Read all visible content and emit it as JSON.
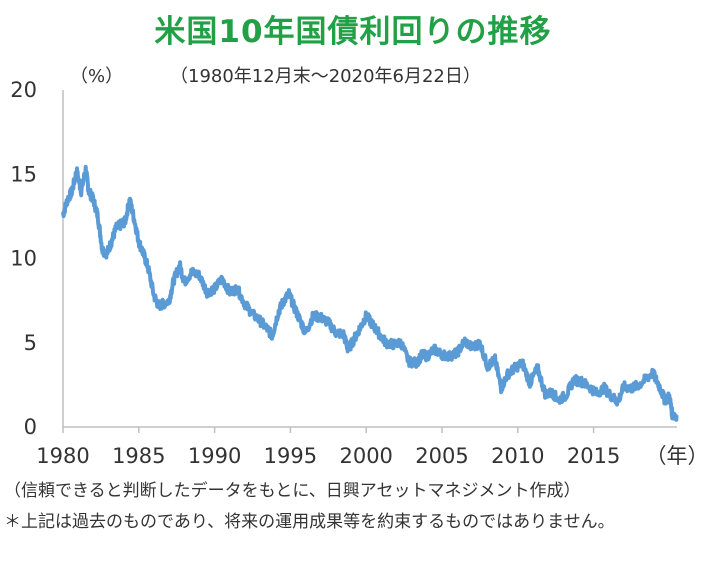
{
  "title": "米国10年国債利回りの推移",
  "subtitle": "（1980年12月末～2020年6月22日）",
  "unit": "（%）",
  "notes": {
    "source": "（信頼できると判断したデータをもとに、日興アセットマネジメント作成）",
    "disclaimer": "＊上記は過去のものであり、将来の運用成果等を約束するものではありません。"
  },
  "chart_data": {
    "type": "line",
    "title": "米国10年国債利回りの推移",
    "subtitle": "（1980年12月末～2020年6月22日）",
    "ylabel": "（%）",
    "xlabel": "（年）",
    "xlim": [
      1980,
      2020.5
    ],
    "ylim": [
      0,
      20
    ],
    "x_ticks": [
      "1980",
      "1985",
      "1990",
      "1995",
      "2000",
      "2005",
      "2010",
      "2015",
      "（年）"
    ],
    "y_ticks": [
      "0",
      "5",
      "10",
      "15",
      "20"
    ],
    "grid": false,
    "color": "#5b9bd5",
    "series": [
      {
        "x": [
          1980.0,
          1980.3,
          1980.6,
          1980.9,
          1981.2,
          1981.5,
          1981.7,
          1982.0,
          1982.3,
          1982.6,
          1982.9,
          1983.2,
          1983.5,
          1983.8,
          1984.1,
          1984.4,
          1984.7,
          1985.0,
          1985.3,
          1985.6,
          1986.0,
          1986.3,
          1986.6,
          1987.0,
          1987.3,
          1987.7,
          1988.0,
          1988.5,
          1989.0,
          1989.5,
          1990.0,
          1990.5,
          1991.0,
          1991.5,
          1992.0,
          1992.5,
          1993.0,
          1993.5,
          1993.8,
          1994.2,
          1994.5,
          1994.9,
          1995.3,
          1995.7,
          1996.0,
          1996.5,
          1997.0,
          1997.5,
          1998.0,
          1998.5,
          1998.8,
          1999.2,
          1999.6,
          2000.0,
          2000.4,
          2000.8,
          2001.3,
          2001.8,
          2002.3,
          2002.8,
          2003.3,
          2003.7,
          2004.0,
          2004.5,
          2005.0,
          2005.5,
          2006.0,
          2006.5,
          2007.0,
          2007.5,
          2008.0,
          2008.5,
          2008.9,
          2009.3,
          2009.8,
          2010.3,
          2010.8,
          2011.3,
          2011.8,
          2012.3,
          2012.7,
          2013.2,
          2013.7,
          2014.2,
          2014.7,
          2015.2,
          2015.7,
          2016.2,
          2016.6,
          2017.0,
          2017.5,
          2018.0,
          2018.5,
          2018.9,
          2019.3,
          2019.7,
          2020.0,
          2020.2,
          2020.47
        ],
        "y": [
          12.6,
          13.5,
          14.0,
          15.2,
          14.0,
          15.3,
          14.0,
          13.5,
          12.5,
          10.5,
          10.3,
          11.0,
          11.8,
          12.0,
          12.2,
          13.5,
          12.3,
          11.0,
          10.3,
          9.5,
          7.8,
          7.2,
          7.3,
          7.5,
          8.7,
          9.6,
          8.6,
          9.2,
          9.0,
          8.0,
          8.2,
          8.8,
          8.0,
          8.2,
          7.3,
          6.7,
          6.3,
          5.8,
          5.4,
          6.8,
          7.4,
          7.9,
          7.0,
          6.2,
          5.6,
          6.6,
          6.5,
          6.2,
          5.6,
          5.5,
          4.6,
          5.2,
          5.9,
          6.6,
          6.1,
          5.6,
          5.0,
          4.9,
          5.0,
          3.9,
          3.8,
          4.3,
          4.2,
          4.6,
          4.3,
          4.2,
          4.4,
          5.1,
          4.7,
          5.0,
          3.6,
          4.0,
          2.3,
          3.1,
          3.5,
          3.8,
          2.6,
          3.5,
          2.0,
          2.0,
          1.6,
          1.9,
          2.8,
          2.7,
          2.4,
          2.0,
          2.3,
          1.8,
          1.5,
          2.4,
          2.3,
          2.5,
          2.9,
          3.2,
          2.5,
          1.6,
          1.8,
          0.7,
          0.7
        ]
      }
    ]
  }
}
